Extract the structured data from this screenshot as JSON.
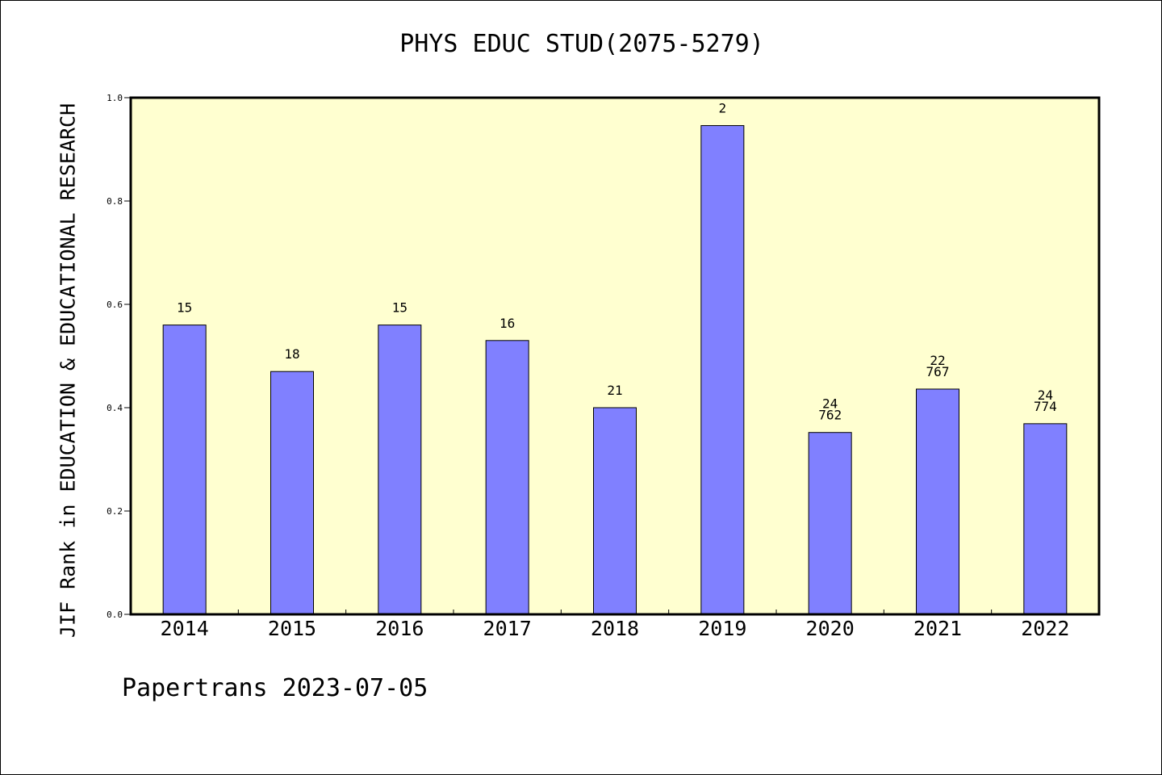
{
  "chart_data": {
    "type": "bar",
    "title": "PHYS EDUC STUD(2075-5279)",
    "xlabel": "",
    "ylabel": "JIF Rank in EDUCATION & EDUCATIONAL RESEARCH",
    "ylim": [
      0,
      1.0
    ],
    "yticks": [
      "0.0",
      "0.2",
      "0.4",
      "0.6",
      "0.8",
      "1.0"
    ],
    "grid": false,
    "categories": [
      "2014",
      "2015",
      "2016",
      "2017",
      "2018",
      "2019",
      "2020",
      "2021",
      "2022"
    ],
    "values": [
      0.56,
      0.47,
      0.56,
      0.53,
      0.4,
      0.946,
      0.352,
      0.436,
      0.369
    ],
    "bar_labels": [
      [
        "15"
      ],
      [
        "18"
      ],
      [
        "15"
      ],
      [
        "16"
      ],
      [
        "21"
      ],
      [
        "2"
      ],
      [
        "24",
        "762"
      ],
      [
        "22",
        "767"
      ],
      [
        "24",
        "774"
      ]
    ],
    "colors": {
      "bar": "#8080ff",
      "plot_background": "#ffffd0",
      "axis": "#000000"
    }
  },
  "footer": "Papertrans 2023-07-05"
}
